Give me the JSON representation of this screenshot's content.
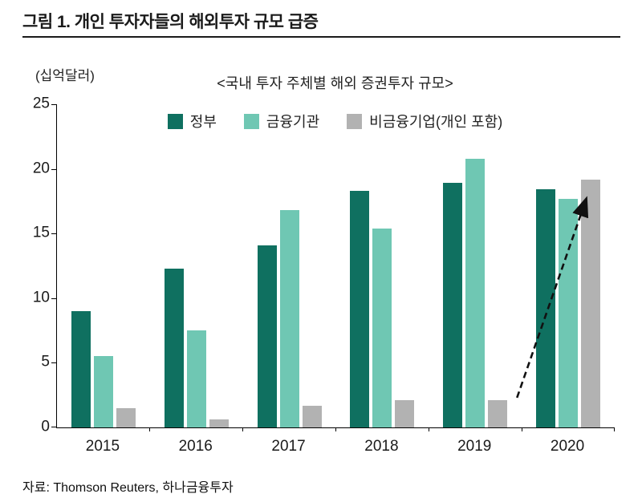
{
  "header": {
    "title": "그림 1. 개인 투자자들의 해외투자 규모 급증"
  },
  "footer": {
    "source": "자료: Thomson Reuters, 하나금융투자"
  },
  "chart_data": {
    "type": "bar",
    "title": "<국내 투자 주체별 해외 증권투자 규모>",
    "ylabel": "(십억달러)",
    "xlabel": "",
    "categories": [
      "2015",
      "2016",
      "2017",
      "2018",
      "2019",
      "2020"
    ],
    "series": [
      {
        "name": "정부",
        "color": "#0f7060",
        "values": [
          9.0,
          12.3,
          14.1,
          18.3,
          18.9,
          18.4
        ]
      },
      {
        "name": "금융기관",
        "color": "#6fc7b3",
        "values": [
          5.5,
          7.5,
          16.8,
          15.4,
          20.8,
          17.7
        ]
      },
      {
        "name": "비금융기업(개인 포함)",
        "color": "#b2b2b2",
        "values": [
          1.5,
          0.6,
          1.7,
          2.1,
          2.1,
          19.2
        ]
      }
    ],
    "ylim": [
      0,
      25
    ],
    "yticks": [
      0,
      5,
      10,
      15,
      20,
      25
    ],
    "grid": false,
    "legend_position": "top",
    "annotation": {
      "type": "dashed-arrow",
      "from": {
        "category_index": 4,
        "series_index": 2,
        "value": 2.3,
        "dx": 24
      },
      "to": {
        "category_index": 5,
        "series_index": 2,
        "value": 17.6,
        "dx": -6
      }
    }
  }
}
